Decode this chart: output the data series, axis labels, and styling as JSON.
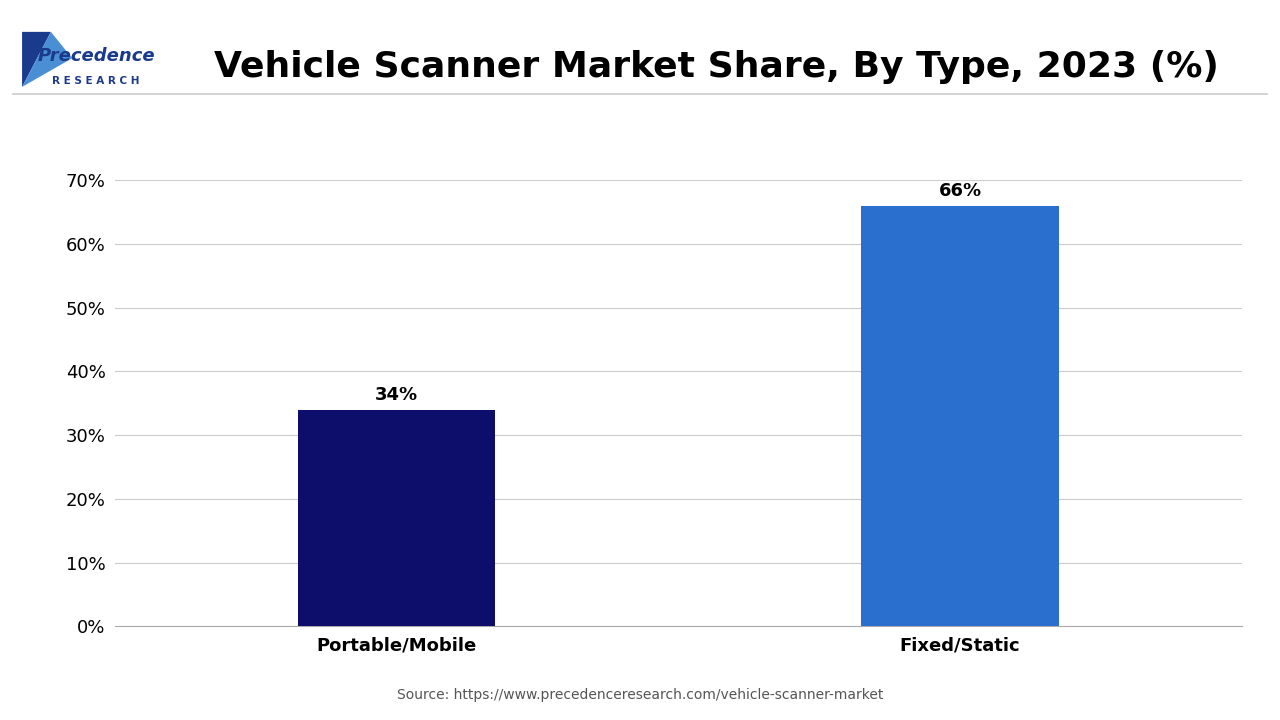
{
  "title": "Vehicle Scanner Market Share, By Type, 2023 (%)",
  "categories": [
    "Portable/Mobile",
    "Fixed/Static"
  ],
  "values": [
    34,
    66
  ],
  "bar_colors": [
    "#0d0d6b",
    "#2b6fce"
  ],
  "bar_labels": [
    "34%",
    "66%"
  ],
  "ylim": [
    0,
    70
  ],
  "yticks": [
    0,
    10,
    20,
    30,
    40,
    50,
    60,
    70
  ],
  "ytick_labels": [
    "0%",
    "10%",
    "20%",
    "30%",
    "40%",
    "50%",
    "60%",
    "70%"
  ],
  "source_text": "Source: https://www.precedenceresearch.com/vehicle-scanner-market",
  "background_color": "#ffffff",
  "grid_color": "#cccccc",
  "title_fontsize": 26,
  "label_fontsize": 13,
  "bar_label_fontsize": 13,
  "source_fontsize": 10,
  "logo_color": "#1a3a8c"
}
